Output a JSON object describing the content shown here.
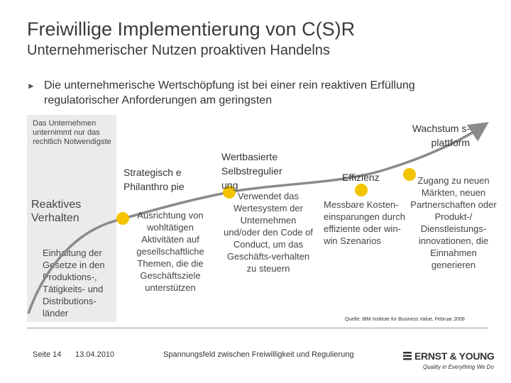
{
  "header": {
    "title": "Freiwillige Implementierung von C(S)R",
    "subtitle": "Unternehmerischer Nutzen proaktiven Handelns"
  },
  "bullet": {
    "marker": "►",
    "text": "Die unternehmerische Wertschöpfung ist bei einer rein reaktiven Erfüllung regulatorischer Anforderungen am geringsten"
  },
  "reactive": {
    "note": "Das Unternehmen unternimmt nur das rechtlich Notwendigste",
    "heading": "Reaktives Verhalten",
    "body": "Einhaltung der Gesetze in den Produktions-, Tätigkeits- und Distributions-länder"
  },
  "stages": {
    "philanthropy": {
      "title": "Strategisch e Philanthro pie",
      "body": "Ausrichtung von wohltätigen Aktivitäten auf gesellschaftliche Themen, die die Geschäftsziele unterstützen"
    },
    "self_regulation": {
      "title": "Wertbasierte Selbstregulier ung",
      "body": "Verwendet das Wertesystem der Unternehmen und/oder den Code of Conduct, um das Geschäfts-verhalten zu steuern"
    },
    "efficiency": {
      "title": "Effizienz",
      "body": "Messbare Kosten-einsparungen durch effiziente oder win-win Szenarios"
    },
    "growth": {
      "title": "Wachstum s-plattform",
      "body": "Zugang zu neuen Märkten, neuen Partnerschaften oder Produkt-/ Dienstleistungs-innovationen, die Einnahmen generieren"
    }
  },
  "source": "Quelle: IBM Institute for Business Value, Februar 2009",
  "footer": {
    "page": "Seite 14",
    "date": "13.04.2010",
    "topic": "Spannungsfeld zwischen Freiwilligkeit und Regulierung"
  },
  "logo": {
    "name": "ERNST & YOUNG",
    "tagline": "Quality in Everything We Do"
  },
  "colors": {
    "curve": "#8a8a8a",
    "dot": "#f5c400",
    "panel": "#ebebeb"
  }
}
